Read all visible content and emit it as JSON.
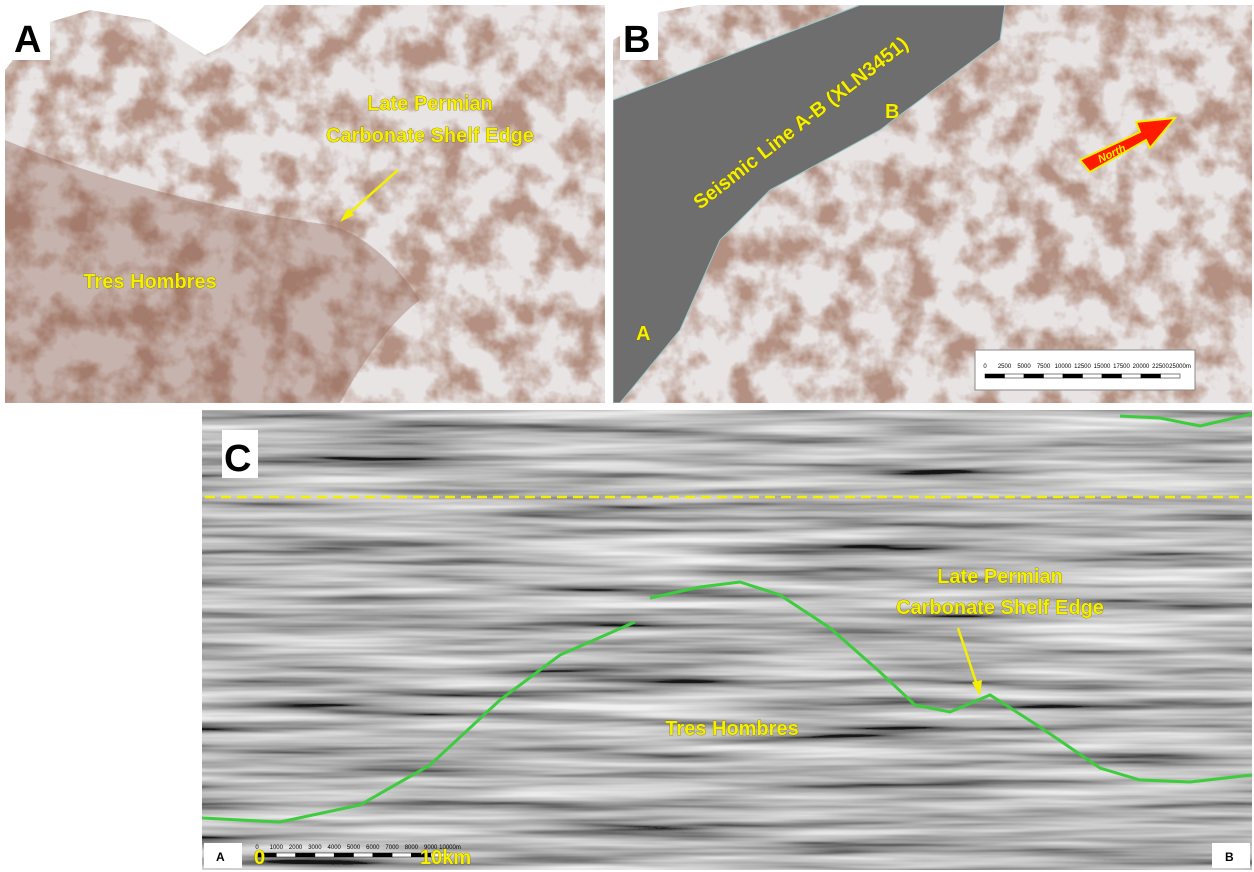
{
  "panels": {
    "a": {
      "label": "A",
      "shelf_title": "Late Permian",
      "shelf_subtitle": "Carbonate Shelf Edge",
      "feature": "Tres Hombres"
    },
    "b": {
      "label": "B",
      "seismic_line": "Seismic Line A-B (XLN3451)",
      "line_end_b": "B",
      "line_end_a": "A",
      "north": "North",
      "scale_labels": [
        "0",
        "2500",
        "5000",
        "7500",
        "10000",
        "12500",
        "15000",
        "17500",
        "20000",
        "22500",
        "25000m"
      ]
    },
    "c": {
      "label": "C",
      "shelf_title": "Late Permian",
      "shelf_subtitle": "Carbonate Shelf Edge",
      "feature": "Tres Hombres",
      "end_a": "A",
      "end_b": "B",
      "scale_labels": [
        "0",
        "1000",
        "2000",
        "3000",
        "4000",
        "5000",
        "6000",
        "7000",
        "8000",
        "9000",
        "10000m"
      ],
      "scale_start": "0",
      "scale_end": "10km"
    }
  }
}
